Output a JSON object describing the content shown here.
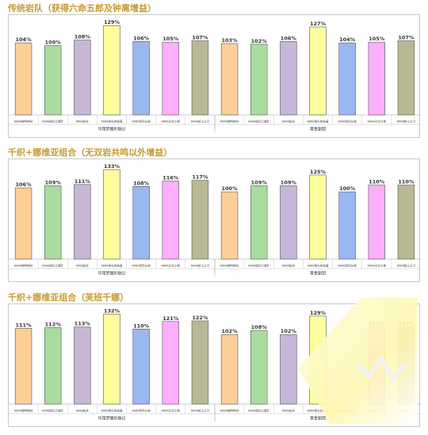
{
  "sections": [
    {
      "title": "传统岩队（获得六命五郎及钟离增益）"
    },
    {
      "title": "千织+娜维亚组合（无双岩共鸣以外增益）"
    },
    {
      "title": "千织+娜维亚组合（芙班千娜）"
    }
  ],
  "colors": [
    "#fdcf98",
    "#a9dc9f",
    "#c8b6d8",
    "#fdfd9b",
    "#9ab7f2",
    "#fdaffd",
    "#b9b895"
  ],
  "chart_data": [
    {
      "type": "bar",
      "groups": [
        "华馆梦醒形骸记",
        "黄金剧团"
      ],
      "categories": [
        "6666黎明神剑",
        "6666原初之星矿",
        "6666蛇矛",
        "6666祭礼的帐幕",
        "6666西风长枪",
        "6666天空之脊",
        "6666斩山之刃"
      ],
      "values": [
        [
          104,
          100,
          108,
          129,
          106,
          105,
          107
        ],
        [
          103,
          102,
          106,
          127,
          104,
          105,
          107
        ]
      ],
      "value_labels": [
        [
          "104%",
          "100%",
          "108%",
          "129%",
          "106%",
          "105%",
          "107%"
        ],
        [
          "103%",
          "102%",
          "106%",
          "127%",
          "104%",
          "105%",
          "107%"
        ]
      ],
      "ylim": [
        0,
        135
      ]
    },
    {
      "type": "bar",
      "groups": [
        "华馆梦醒形骸记",
        "黄金剧团"
      ],
      "categories": [
        "6666黎明神剑",
        "6666原初之星矿",
        "6666蛇矛",
        "6666祭礼的帐幕",
        "6666西风长枪",
        "6666天空之脊",
        "6666斩山之刃"
      ],
      "values": [
        [
          106,
          109,
          111,
          133,
          108,
          116,
          117
        ],
        [
          100,
          109,
          109,
          125,
          100,
          110,
          110
        ]
      ],
      "value_labels": [
        [
          "106%",
          "109%",
          "111%",
          "133%",
          "108%",
          "116%",
          "117%"
        ],
        [
          "100%",
          "109%",
          "109%",
          "125%",
          "100%",
          "110%",
          "110%"
        ]
      ],
      "ylim": [
        0,
        139
      ]
    },
    {
      "type": "bar",
      "groups": [
        "华馆梦醒形骸记",
        "黄金剧团"
      ],
      "categories": [
        "6666黎明神剑",
        "6666原初之星矿",
        "6666蛇矛",
        "6666祭礼的帐幕",
        "6666西风长枪",
        "6666天空之脊",
        "6666斩山之刃"
      ],
      "values": [
        [
          111,
          112,
          113,
          132,
          110,
          121,
          122
        ],
        [
          102,
          108,
          102,
          129,
          0,
          113,
          113
        ]
      ],
      "value_labels": [
        [
          "111%",
          "112%",
          "113%",
          "132%",
          "110%",
          "121%",
          "122%"
        ],
        [
          "102%",
          "108%",
          "102%",
          "129%",
          "",
          "113%",
          "113%"
        ]
      ],
      "ylim": [
        0,
        137
      ]
    }
  ]
}
